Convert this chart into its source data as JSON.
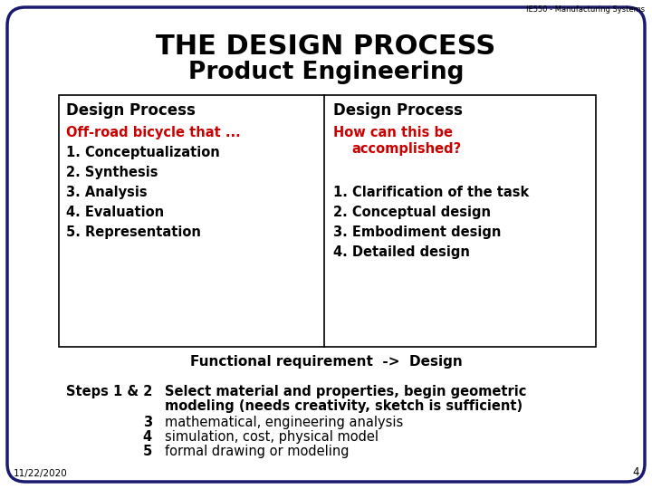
{
  "bg_color": "#ffffff",
  "border_color": "#1a1a6e",
  "header_top": "THE DESIGN PROCESS",
  "header_bottom": "Product Engineering",
  "top_right_text": "IE550 - Manufacturing Systems",
  "left_col_header": "Design Process",
  "right_col_header": "Design Process",
  "left_red_text": "Off-road bicycle that ...",
  "left_items": [
    "1. Conceptualization",
    "2. Synthesis",
    "3. Analysis",
    "4. Evaluation",
    "5. Representation"
  ],
  "right_red_text_line1": "How can this be",
  "right_red_text_line2": "accomplished?",
  "right_items": [
    "1. Clarification of the task",
    "2. Conceptual design",
    "3. Embodiment design",
    "4. Detailed design"
  ],
  "functional_req": "Functional requirement  ->  Design",
  "steps_label": "Steps 1 & 2",
  "steps_text_line1": "Select material and properties, begin geometric",
  "steps_text_line2": "modeling (needs creativity, sketch is sufficient)",
  "step3_label": "3",
  "step3_text": "mathematical, engineering analysis",
  "step4_label": "4",
  "step4_text": "simulation, cost, physical model",
  "step5_label": "5",
  "step5_text": "formal drawing or modeling",
  "date_text": "11/22/2020",
  "page_num": "4",
  "red_color": "#cc0000",
  "black_color": "#000000",
  "table_border": "#000000"
}
